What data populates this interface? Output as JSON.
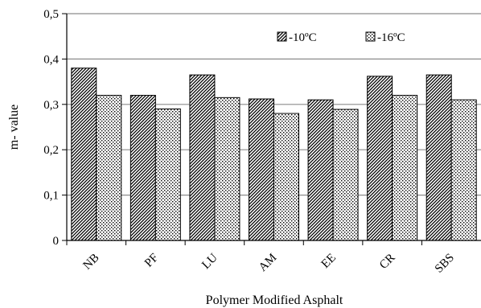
{
  "chart_data": {
    "type": "bar",
    "title": "",
    "xlabel": "Polymer Modified Asphalt",
    "ylabel": "m- value",
    "categories": [
      "NB",
      "PF",
      "LU",
      "AM",
      "EE",
      "CR",
      "SBS"
    ],
    "series": [
      {
        "name": "-10ºC",
        "pattern": "diagonal-hatch",
        "values": [
          0.38,
          0.32,
          0.365,
          0.312,
          0.31,
          0.362,
          0.365
        ]
      },
      {
        "name": "-16ºC",
        "pattern": "dotted",
        "values": [
          0.32,
          0.29,
          0.315,
          0.28,
          0.289,
          0.32,
          0.31
        ]
      }
    ],
    "ylim": [
      0,
      0.5
    ],
    "yticks": [
      "0",
      "0,1",
      "0,2",
      "0,3",
      "0,4",
      "0,5"
    ],
    "grid": true,
    "legend_position": "top-right",
    "colors": {
      "grid": "#8c8c8c",
      "axis": "#000000",
      "bar_fill": "#ffffff",
      "bar_pattern": "#000000"
    }
  }
}
